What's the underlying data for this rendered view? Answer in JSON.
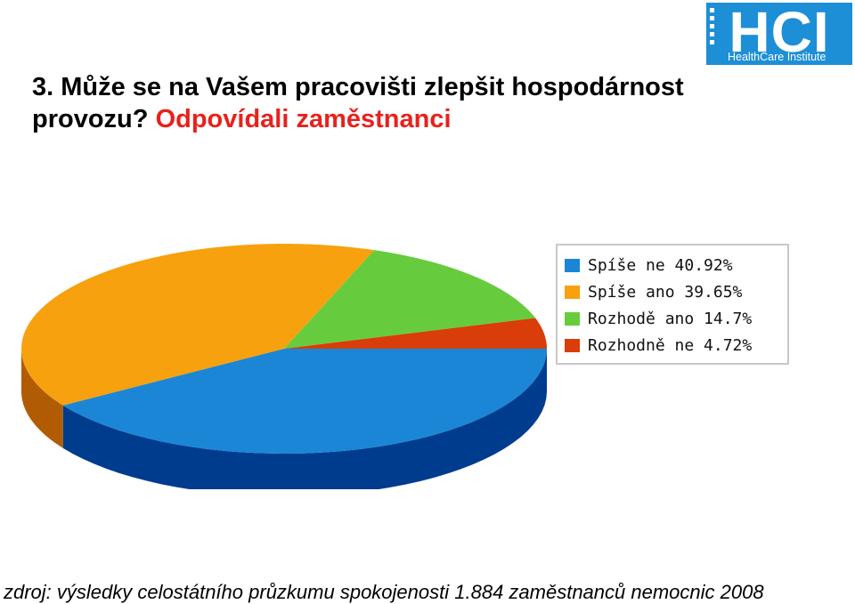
{
  "title": {
    "main": "3. Může se na Vašem pracovišti zlepšit hospodárnost provozu?",
    "accent": "Odpovídali zaměstnanci"
  },
  "logo": {
    "text": "HCI",
    "subtitle": "HealthCare Institute",
    "color": "#1d8fd6"
  },
  "chart_data": {
    "type": "pie",
    "title": "",
    "slices": [
      {
        "label": "Spíše ne 40.92%",
        "name": "Spíše ne",
        "value": 40.92,
        "color": "#1b86d6",
        "side": "#003c8e"
      },
      {
        "label": "Spíše ano 39.65%",
        "name": "Spíše ano",
        "value": 39.65,
        "color": "#f7a10f",
        "side": "#b15c03"
      },
      {
        "label": "Rozhodě ano 14.7%",
        "name": "Rozhodě ano",
        "value": 14.7,
        "color": "#66cc3d",
        "side": "#3e8a20"
      },
      {
        "label": "Rozhodně ne 4.72%",
        "name": "Rozhodně ne",
        "value": 4.72,
        "color": "#d93d09",
        "side": "#8a2400"
      }
    ],
    "legend_position": "right"
  },
  "source": "zdroj: výsledky celostátního průzkumu spokojenosti 1.884 zaměstnanců nemocnic 2008"
}
